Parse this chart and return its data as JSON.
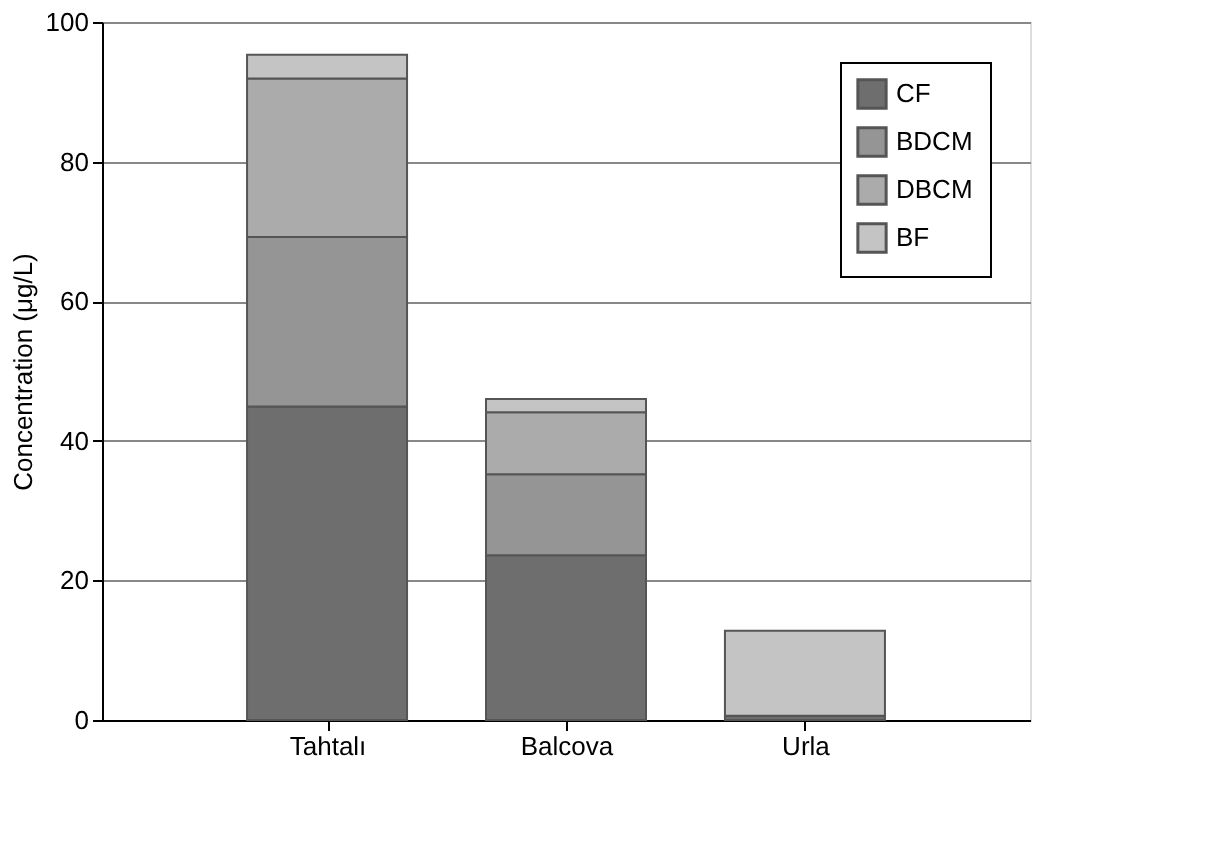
{
  "chart_data": {
    "type": "bar",
    "stacked": true,
    "ylabel": "Concentration (μg/L)",
    "categories": [
      "Tahtalı",
      "Balcova",
      "Urla"
    ],
    "series": [
      {
        "name": "CF",
        "color": "#6e6e6e",
        "values": [
          44.9,
          23.6,
          0.6
        ]
      },
      {
        "name": "BDCM",
        "color": "#959595",
        "values": [
          24.3,
          11.6,
          0
        ]
      },
      {
        "name": "DBCM",
        "color": "#ababab",
        "values": [
          22.7,
          8.9,
          0
        ]
      },
      {
        "name": "BF",
        "color": "#c4c4c4",
        "values": [
          3.4,
          1.9,
          12.2
        ]
      }
    ],
    "ylim": [
      0,
      100
    ],
    "yticks": [
      0,
      20,
      40,
      60,
      80,
      100
    ],
    "grid": "y",
    "legend": "top right"
  }
}
